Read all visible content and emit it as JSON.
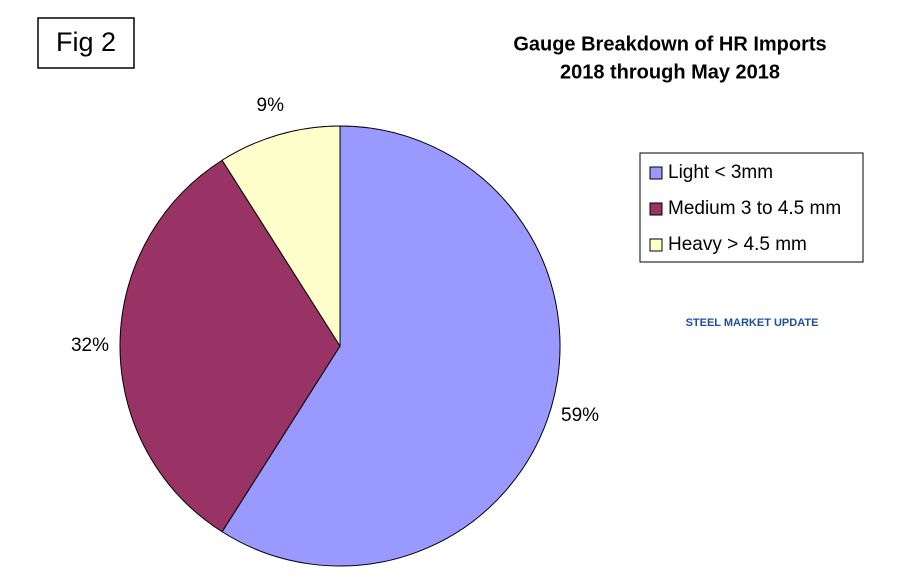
{
  "figure_label": "Fig 2",
  "logo_text": "STEEL MARKET UPDATE",
  "chart_data": {
    "type": "pie",
    "title": "Gauge Breakdown of HR Imports",
    "subtitle": "2018 through May 2018",
    "categories": [
      "Light < 3mm",
      "Medium 3 to 4.5 mm",
      "Heavy > 4.5 mm"
    ],
    "values": [
      59,
      32,
      9
    ],
    "value_labels": [
      "59%",
      "32%",
      "9%"
    ],
    "colors": [
      "#9999ff",
      "#993366",
      "#ffffcc"
    ],
    "legend": "right"
  }
}
